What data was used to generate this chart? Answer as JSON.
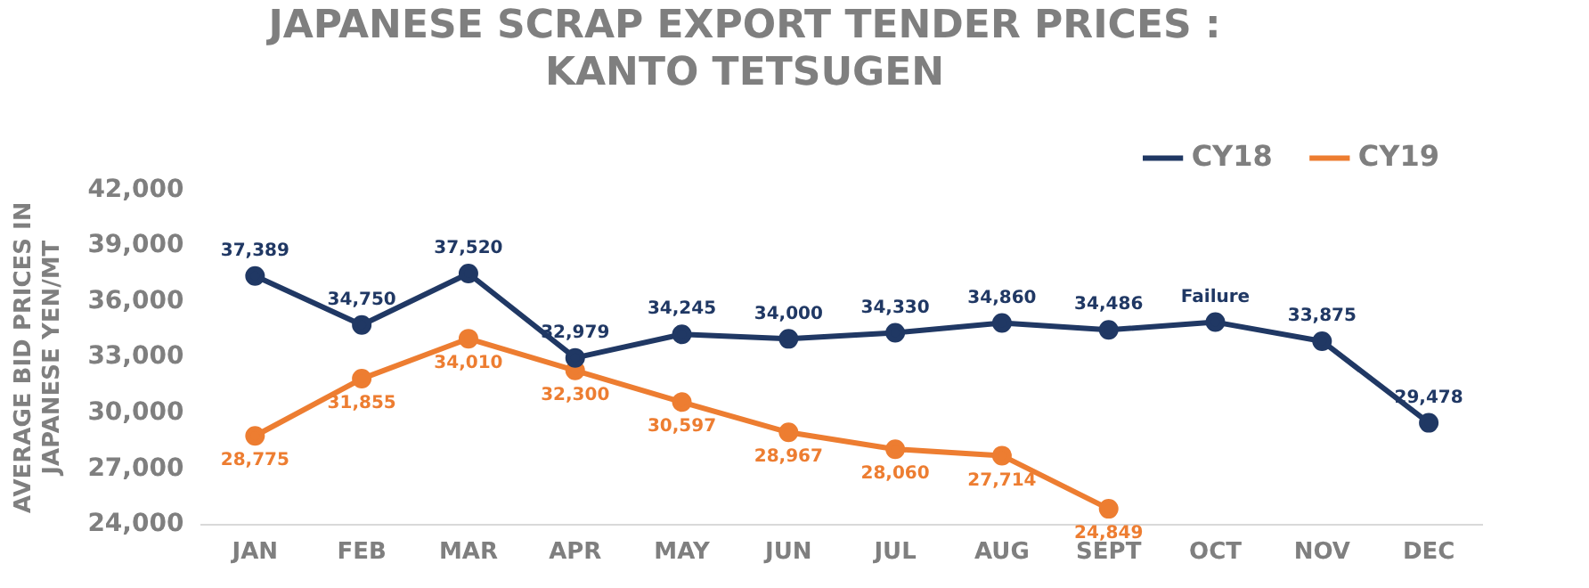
{
  "chart_data": {
    "type": "line",
    "title": "JAPANESE SCRAP EXPORT TENDER PRICES :\nKANTO TETSUGEN",
    "ylabel": "AVERAGE BID PRICES IN\nJAPANESE YEN/MT",
    "categories": [
      "JAN",
      "FEB",
      "MAR",
      "APR",
      "MAY",
      "JUN",
      "JUL",
      "AUG",
      "SEPT",
      "OCT",
      "NOV",
      "DEC"
    ],
    "series": [
      {
        "name": "CY18",
        "color": "#203864",
        "values": [
          37389,
          34750,
          37520,
          32979,
          34245,
          34000,
          34330,
          34860,
          34486,
          34900,
          33875,
          29478
        ],
        "value_labels": [
          "37,389",
          "34,750",
          "37,520",
          "32,979",
          "34,245",
          "34,000",
          "34,330",
          "34,860",
          "34,486",
          "Failure",
          "33,875",
          "29,478"
        ]
      },
      {
        "name": "CY19",
        "color": "#ed7d31",
        "values": [
          28775,
          31855,
          34010,
          32300,
          30597,
          28967,
          28060,
          27714,
          24849,
          null,
          null,
          null
        ],
        "value_labels": [
          "28,775",
          "31,855",
          "34,010",
          "32,300",
          "30,597",
          "28,967",
          "28,060",
          "27,714",
          "24,849",
          null,
          null,
          null
        ]
      }
    ],
    "ylim": [
      24000,
      42000
    ],
    "yticks": [
      {
        "value": 24000,
        "label": "24,000"
      },
      {
        "value": 27000,
        "label": "27,000"
      },
      {
        "value": 30000,
        "label": "30,000"
      },
      {
        "value": 33000,
        "label": "33,000"
      },
      {
        "value": 36000,
        "label": "36,000"
      },
      {
        "value": 39000,
        "label": "39,000"
      },
      {
        "value": 42000,
        "label": "42,000"
      }
    ],
    "grid": false,
    "legend": "top right",
    "marker": "circle"
  }
}
